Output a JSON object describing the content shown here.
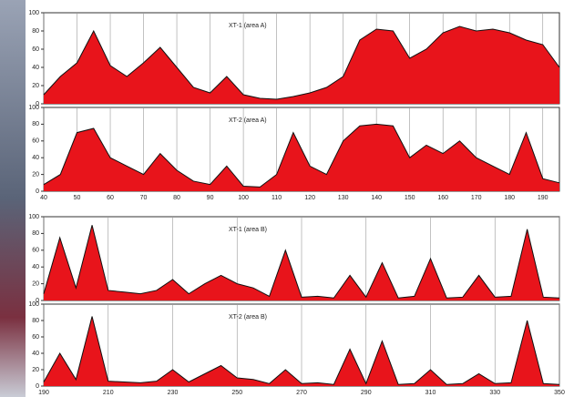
{
  "chart_data": [
    {
      "type": "area",
      "title": "XT-1 (area A)",
      "color": "#e8141b",
      "line_color": "#111111",
      "xtick_labels": false,
      "xlim": [
        40,
        195
      ],
      "ylim": [
        0,
        100
      ],
      "xticks": [
        40,
        50,
        60,
        70,
        80,
        90,
        100,
        110,
        120,
        130,
        140,
        150,
        160,
        170,
        180,
        190
      ],
      "yticks": [
        0,
        20,
        40,
        60,
        80,
        100
      ],
      "x": [
        40,
        45,
        50,
        55,
        60,
        65,
        70,
        75,
        80,
        85,
        90,
        95,
        100,
        105,
        110,
        115,
        120,
        125,
        130,
        135,
        140,
        145,
        150,
        155,
        160,
        165,
        170,
        175,
        180,
        185,
        190,
        195
      ],
      "values": [
        10,
        30,
        45,
        80,
        42,
        30,
        45,
        62,
        40,
        18,
        12,
        30,
        10,
        6,
        5,
        8,
        12,
        18,
        30,
        70,
        82,
        80,
        50,
        60,
        78,
        85,
        80,
        82,
        78,
        70,
        65,
        40
      ]
    },
    {
      "type": "area",
      "title": "XT-2 (area A)",
      "color": "#e8141b",
      "line_color": "#111111",
      "xtick_labels": true,
      "xlim": [
        40,
        195
      ],
      "ylim": [
        0,
        100
      ],
      "xticks": [
        40,
        50,
        60,
        70,
        80,
        90,
        100,
        110,
        120,
        130,
        140,
        150,
        160,
        170,
        180,
        190
      ],
      "yticks": [
        0,
        20,
        40,
        60,
        80,
        100
      ],
      "x": [
        40,
        45,
        50,
        55,
        60,
        65,
        70,
        75,
        80,
        85,
        90,
        95,
        100,
        105,
        110,
        115,
        120,
        125,
        130,
        135,
        140,
        145,
        150,
        155,
        160,
        165,
        170,
        175,
        180,
        185,
        190,
        195
      ],
      "values": [
        8,
        20,
        70,
        75,
        40,
        30,
        20,
        45,
        25,
        12,
        8,
        30,
        6,
        5,
        20,
        70,
        30,
        20,
        60,
        78,
        80,
        78,
        40,
        55,
        45,
        60,
        40,
        30,
        20,
        70,
        15,
        10
      ]
    },
    {
      "type": "area",
      "title": "XT-1 (area B)",
      "color": "#e8141b",
      "line_color": "#111111",
      "xtick_labels": false,
      "xlim": [
        190,
        350
      ],
      "ylim": [
        0,
        100
      ],
      "xticks": [
        190,
        210,
        230,
        250,
        270,
        290,
        310,
        330,
        350
      ],
      "yticks": [
        0,
        20,
        40,
        60,
        80,
        100
      ],
      "x": [
        190,
        195,
        200,
        205,
        210,
        215,
        220,
        225,
        230,
        235,
        240,
        245,
        250,
        255,
        260,
        265,
        270,
        275,
        280,
        285,
        290,
        295,
        300,
        305,
        310,
        315,
        320,
        325,
        330,
        335,
        340,
        345,
        350
      ],
      "values": [
        8,
        75,
        15,
        90,
        12,
        10,
        8,
        12,
        25,
        8,
        20,
        30,
        20,
        15,
        5,
        60,
        4,
        5,
        3,
        30,
        4,
        45,
        3,
        5,
        50,
        3,
        4,
        30,
        4,
        5,
        85,
        4,
        3
      ]
    },
    {
      "type": "area",
      "title": "XT-2 (area B)",
      "color": "#e8141b",
      "line_color": "#111111",
      "xtick_labels": true,
      "xlim": [
        190,
        350
      ],
      "ylim": [
        0,
        100
      ],
      "xticks": [
        190,
        210,
        230,
        250,
        270,
        290,
        310,
        330,
        350
      ],
      "yticks": [
        0,
        20,
        40,
        60,
        80,
        100
      ],
      "x": [
        190,
        195,
        200,
        205,
        210,
        215,
        220,
        225,
        230,
        235,
        240,
        245,
        250,
        255,
        260,
        265,
        270,
        275,
        280,
        285,
        290,
        295,
        300,
        305,
        310,
        315,
        320,
        325,
        330,
        335,
        340,
        345,
        350
      ],
      "values": [
        5,
        40,
        8,
        85,
        6,
        5,
        4,
        6,
        20,
        5,
        15,
        25,
        10,
        8,
        3,
        20,
        3,
        4,
        2,
        45,
        3,
        55,
        2,
        3,
        20,
        2,
        3,
        15,
        3,
        4,
        80,
        3,
        2
      ]
    }
  ]
}
